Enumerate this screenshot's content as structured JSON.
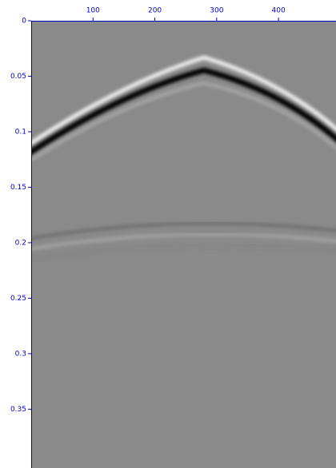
{
  "chart_data": {
    "type": "image",
    "xlim": [
      0,
      493
    ],
    "xticks": [
      100,
      200,
      300,
      400
    ],
    "ylim": [
      0,
      0.403
    ],
    "yticks": [
      0,
      0.05,
      0.1,
      0.15,
      0.2,
      0.25,
      0.3,
      0.35
    ],
    "color": "#0000cc"
  }
}
